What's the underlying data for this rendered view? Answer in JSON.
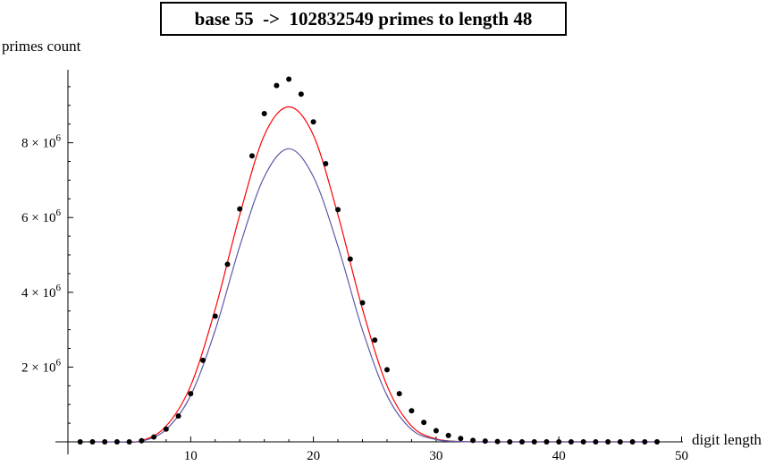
{
  "chart_data": {
    "type": "scatter",
    "title": "base 55  ->  102832549 primes to length 48",
    "xlabel": "digit length",
    "ylabel": "primes count",
    "xlim": [
      0,
      50
    ],
    "ylim": [
      0,
      10000000
    ],
    "x_ticks": [
      10,
      20,
      30,
      40,
      50
    ],
    "x_tick_labels": [
      "10",
      "20",
      "30",
      "40",
      "50"
    ],
    "y_ticks": [
      2000000,
      4000000,
      6000000,
      8000000
    ],
    "y_tick_labels": [
      {
        "mantissa": "2",
        "times": "×",
        "base": "10",
        "exp": "6"
      },
      {
        "mantissa": "4",
        "times": "×",
        "base": "10",
        "exp": "6"
      },
      {
        "mantissa": "6",
        "times": "×",
        "base": "10",
        "exp": "6"
      },
      {
        "mantissa": "8",
        "times": "×",
        "base": "10",
        "exp": "6"
      }
    ],
    "grid": false,
    "series": [
      {
        "kind": "points",
        "color": "#000000",
        "x": [
          1,
          2,
          3,
          4,
          5,
          6,
          7,
          8,
          9,
          10,
          11,
          12,
          13,
          14,
          15,
          16,
          17,
          18,
          19,
          20,
          21,
          22,
          23,
          24,
          25,
          26,
          27,
          28,
          29,
          30,
          31,
          32,
          33,
          34,
          35,
          36,
          37,
          38,
          39,
          40,
          41,
          42,
          43,
          44,
          45,
          46,
          47,
          48
        ],
        "y": [
          0,
          0,
          0,
          0,
          0,
          30000,
          130000,
          340000,
          690000,
          1290000,
          2180000,
          3360000,
          4750000,
          6230000,
          7650000,
          8780000,
          9530000,
          9700000,
          9300000,
          8560000,
          7440000,
          6210000,
          4890000,
          3720000,
          2720000,
          1930000,
          1290000,
          830000,
          520000,
          300000,
          170000,
          90000,
          40000,
          20000,
          10000,
          0,
          0,
          0,
          0,
          0,
          0,
          0,
          0,
          0,
          0,
          0,
          0,
          0
        ]
      },
      {
        "kind": "curve",
        "color": "#ff0000",
        "x": [
          2,
          4,
          6,
          8,
          10,
          12,
          14,
          16,
          18,
          20,
          22,
          24,
          26,
          28,
          30,
          32,
          34,
          36,
          38,
          40,
          42,
          44,
          46,
          48
        ],
        "y": [
          0,
          0,
          30000,
          420000,
          1500000,
          3550000,
          6070000,
          8200000,
          8960000,
          8200000,
          6070000,
          3550000,
          1500000,
          420000,
          80000,
          10000,
          0,
          0,
          0,
          0,
          0,
          0,
          0,
          0
        ]
      },
      {
        "kind": "curve",
        "color": "#5a5aa8",
        "x": [
          2,
          4,
          6,
          8,
          10,
          12,
          14,
          16,
          18,
          20,
          22,
          24,
          26,
          28,
          30,
          32,
          34,
          36,
          38,
          40,
          42,
          44,
          46,
          48
        ],
        "y": [
          0,
          0,
          20000,
          330000,
          1240000,
          2990000,
          5230000,
          7090000,
          7840000,
          7090000,
          5230000,
          2990000,
          1240000,
          330000,
          60000,
          10000,
          0,
          0,
          0,
          0,
          0,
          0,
          0,
          0
        ]
      }
    ]
  }
}
